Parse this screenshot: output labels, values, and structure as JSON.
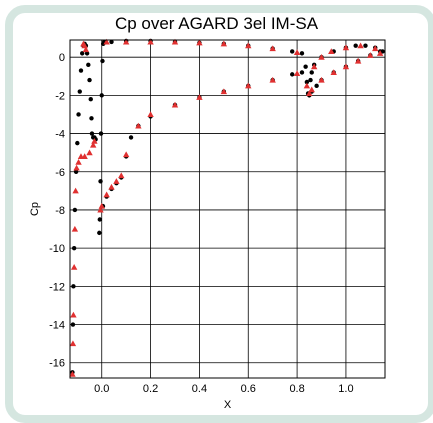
{
  "chart_data": {
    "type": "scatter",
    "title": "Cp over AGARD 3el IM-SA",
    "xlabel": "X",
    "ylabel": "Cp",
    "xlim": [
      -0.13,
      1.16
    ],
    "ylim": [
      -16.8,
      0.9
    ],
    "y_reversed": true,
    "grid": true,
    "xticks": [
      0.0,
      0.2,
      0.4,
      0.6,
      0.8,
      1.0
    ],
    "xtick_labels": [
      "0.0",
      "0.2",
      "0.4",
      "0.6",
      "0.8",
      "1.0"
    ],
    "yticks": [
      0,
      -2,
      -4,
      -6,
      -8,
      -10,
      -12,
      -14,
      -16
    ],
    "ytick_labels": [
      "0",
      "-2",
      "-4",
      "-6",
      "-8",
      "-10",
      "-12",
      "-14",
      "-16"
    ],
    "series": [
      {
        "marker": "circle",
        "color": "#000000",
        "points": [
          [
            -0.12,
            -16.5
          ],
          [
            -0.118,
            -14.0
          ],
          [
            -0.116,
            -12.0
          ],
          [
            -0.113,
            -10.0
          ],
          [
            -0.11,
            -8.0
          ],
          [
            -0.105,
            -6.0
          ],
          [
            -0.1,
            -4.5
          ],
          [
            -0.095,
            -3.0
          ],
          [
            -0.09,
            -1.8
          ],
          [
            -0.085,
            -0.7
          ],
          [
            -0.08,
            0.2
          ],
          [
            -0.075,
            0.6
          ],
          [
            -0.07,
            0.7
          ],
          [
            -0.065,
            0.6
          ],
          [
            -0.06,
            0.2
          ],
          [
            -0.055,
            -0.4
          ],
          [
            -0.05,
            -1.2
          ],
          [
            -0.045,
            -2.2
          ],
          [
            -0.042,
            -3.2
          ],
          [
            -0.04,
            -4.0
          ],
          [
            -0.035,
            -4.2
          ],
          [
            -0.03,
            -4.2
          ],
          [
            -0.025,
            -4.3
          ],
          [
            -0.01,
            -9.2
          ],
          [
            -0.008,
            -8.5
          ],
          [
            -0.005,
            -6.5
          ],
          [
            -0.003,
            -4.0
          ],
          [
            0.0,
            -2.0
          ],
          [
            0.003,
            -0.2
          ],
          [
            0.006,
            0.7
          ],
          [
            0.01,
            0.8
          ],
          [
            0.04,
            0.8
          ],
          [
            0.1,
            0.85
          ],
          [
            0.2,
            0.85
          ],
          [
            0.3,
            0.8
          ],
          [
            0.4,
            0.75
          ],
          [
            0.5,
            0.7
          ],
          [
            0.6,
            0.6
          ],
          [
            0.7,
            0.45
          ],
          [
            0.78,
            0.3
          ],
          [
            0.82,
            0.2
          ],
          [
            0.005,
            -7.8
          ],
          [
            0.02,
            -7.3
          ],
          [
            0.04,
            -6.9
          ],
          [
            0.06,
            -6.6
          ],
          [
            0.08,
            -6.3
          ],
          [
            0.1,
            -5.2
          ],
          [
            0.12,
            -4.2
          ],
          [
            0.15,
            -3.6
          ],
          [
            0.2,
            -3.1
          ],
          [
            0.3,
            -2.5
          ],
          [
            0.4,
            -2.1
          ],
          [
            0.5,
            -1.8
          ],
          [
            0.6,
            -1.5
          ],
          [
            0.7,
            -1.2
          ],
          [
            0.78,
            -0.9
          ],
          [
            0.82,
            -0.8
          ],
          [
            0.835,
            -0.5
          ],
          [
            0.84,
            -1.3
          ],
          [
            0.845,
            -1.9
          ],
          [
            0.85,
            -2.0
          ],
          [
            0.86,
            -1.8
          ],
          [
            0.88,
            -1.5
          ],
          [
            0.9,
            -1.2
          ],
          [
            0.95,
            -0.8
          ],
          [
            1.0,
            -0.5
          ],
          [
            1.05,
            -0.2
          ],
          [
            1.1,
            0.1
          ],
          [
            1.14,
            0.3
          ],
          [
            1.15,
            0.3
          ],
          [
            1.12,
            0.5
          ],
          [
            1.08,
            0.6
          ],
          [
            1.04,
            0.6
          ],
          [
            1.0,
            0.5
          ],
          [
            0.95,
            0.3
          ],
          [
            0.9,
            0.0
          ],
          [
            0.87,
            -0.4
          ],
          [
            0.86,
            -0.8
          ],
          [
            0.855,
            -1.2
          ]
        ]
      },
      {
        "marker": "triangle",
        "color": "#e03030",
        "points": [
          [
            -0.12,
            -16.6
          ],
          [
            -0.118,
            -15.0
          ],
          [
            -0.116,
            -13.5
          ],
          [
            -0.113,
            -11.0
          ],
          [
            -0.11,
            -9.0
          ],
          [
            -0.107,
            -7.0
          ],
          [
            -0.103,
            -5.8
          ],
          [
            -0.095,
            -5.5
          ],
          [
            -0.085,
            -5.2
          ],
          [
            -0.07,
            -5.2
          ],
          [
            -0.05,
            -5.0
          ],
          [
            -0.035,
            -4.6
          ],
          [
            -0.03,
            -4.4
          ],
          [
            -0.075,
            0.7
          ],
          [
            -0.07,
            0.6
          ],
          [
            -0.065,
            0.4
          ],
          [
            -0.005,
            -8.0
          ],
          [
            0.0,
            -7.8
          ],
          [
            0.02,
            -7.2
          ],
          [
            0.04,
            -6.8
          ],
          [
            0.06,
            -6.5
          ],
          [
            0.08,
            -6.2
          ],
          [
            0.1,
            -5.1
          ],
          [
            0.15,
            -3.6
          ],
          [
            0.2,
            -3.0
          ],
          [
            0.3,
            -2.5
          ],
          [
            0.4,
            -2.1
          ],
          [
            0.5,
            -1.8
          ],
          [
            0.6,
            -1.5
          ],
          [
            0.7,
            -1.2
          ],
          [
            0.8,
            -0.85
          ],
          [
            0.02,
            0.8
          ],
          [
            0.1,
            0.8
          ],
          [
            0.2,
            0.8
          ],
          [
            0.3,
            0.8
          ],
          [
            0.4,
            0.75
          ],
          [
            0.5,
            0.7
          ],
          [
            0.6,
            0.6
          ],
          [
            0.7,
            0.45
          ],
          [
            0.8,
            0.25
          ],
          [
            0.84,
            -1.5
          ],
          [
            0.85,
            -1.9
          ],
          [
            0.86,
            -1.7
          ],
          [
            0.9,
            -1.2
          ],
          [
            0.95,
            -0.8
          ],
          [
            1.0,
            -0.5
          ],
          [
            1.05,
            -0.2
          ],
          [
            1.1,
            0.1
          ],
          [
            1.14,
            0.2
          ],
          [
            1.12,
            0.45
          ],
          [
            1.06,
            0.6
          ],
          [
            1.0,
            0.5
          ],
          [
            0.94,
            0.3
          ],
          [
            0.9,
            0.0
          ],
          [
            0.87,
            -0.5
          ]
        ]
      }
    ]
  }
}
